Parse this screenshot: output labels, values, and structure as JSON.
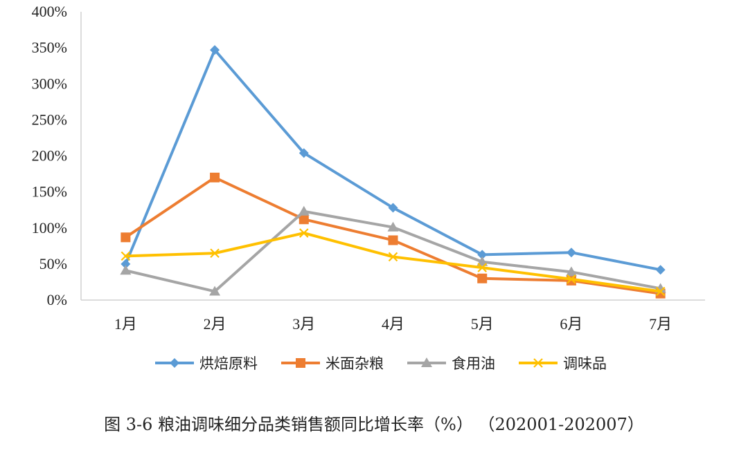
{
  "caption": "图 3-6  粮油调味细分品类销售额同比增长率（%）  （202001-202007）",
  "chart_data": {
    "type": "line",
    "categories": [
      "1月",
      "2月",
      "3月",
      "4月",
      "5月",
      "6月",
      "7月"
    ],
    "ylim": [
      0,
      400
    ],
    "yticks": [
      "0%",
      "50%",
      "100%",
      "150%",
      "200%",
      "250%",
      "300%",
      "350%",
      "400%"
    ],
    "grid": false,
    "legend_position": "bottom",
    "series": [
      {
        "name": "烘焙原料",
        "color": "#5B9BD5",
        "marker": "diamond",
        "values": [
          50,
          347,
          204,
          128,
          63,
          66,
          42
        ]
      },
      {
        "name": "米面杂粮",
        "color": "#ED7D31",
        "marker": "square",
        "values": [
          87,
          170,
          112,
          83,
          30,
          27,
          9
        ]
      },
      {
        "name": "食用油",
        "color": "#A5A5A5",
        "marker": "triangle",
        "values": [
          41,
          12,
          123,
          101,
          53,
          39,
          16
        ]
      },
      {
        "name": "调味品",
        "color": "#FFC000",
        "marker": "x",
        "values": [
          61,
          65,
          93,
          60,
          45,
          29,
          12
        ]
      }
    ]
  }
}
